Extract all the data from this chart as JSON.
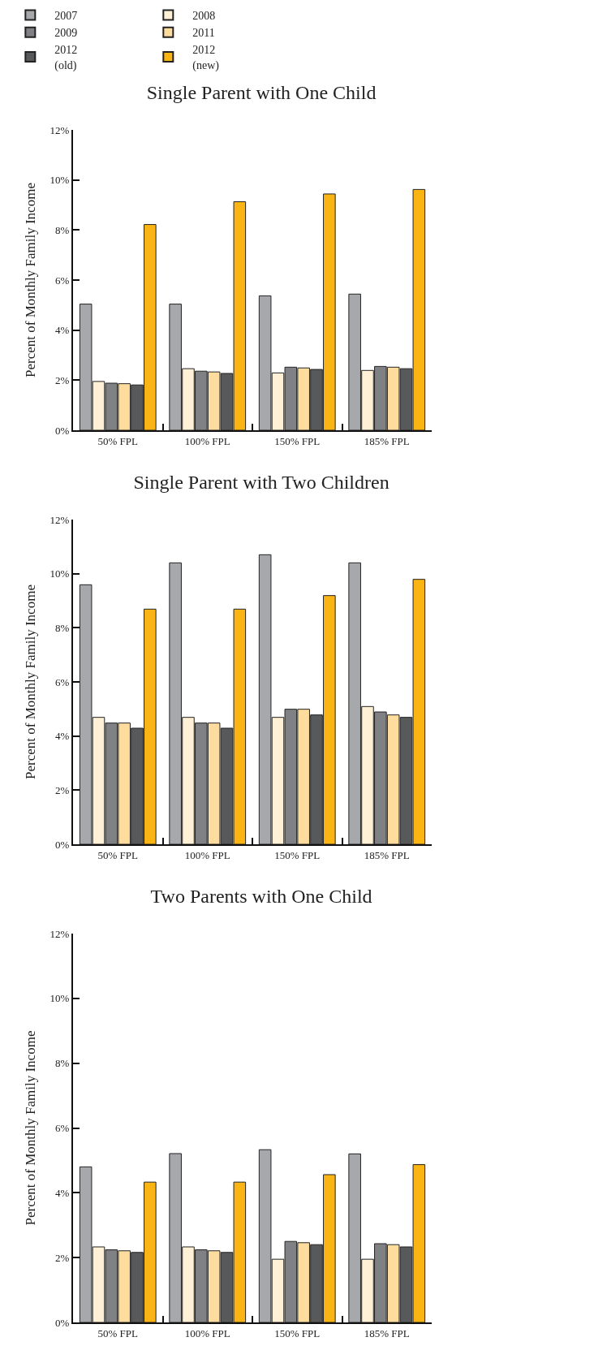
{
  "chart_data": [
    {
      "type": "bar",
      "title": "Single Parent with One Child",
      "ylabel": "Percent of Monthly Family Income",
      "categories": [
        "50% FPL",
        "100% FPL",
        "150% FPL",
        "185% FPL"
      ],
      "ylim": [
        0,
        12
      ],
      "yticks": [
        {
          "value": 0,
          "label": "0%"
        },
        {
          "value": 2,
          "label": "2%"
        },
        {
          "value": 4,
          "label": "4%"
        },
        {
          "value": 6,
          "label": "6%"
        },
        {
          "value": 8,
          "label": "8%"
        },
        {
          "value": 10,
          "label": "10%"
        },
        {
          "value": 12,
          "label": "12%"
        }
      ],
      "grid": false,
      "legend": "top",
      "series": [
        {
          "name": "2007",
          "color": "#a7a8ab",
          "values": [
            5.04,
            5.04,
            5.37,
            5.44
          ]
        },
        {
          "name": "2008",
          "color": "#fff0d6",
          "values": [
            1.95,
            2.46,
            2.29,
            2.39
          ]
        },
        {
          "name": "2009",
          "color": "#808184",
          "values": [
            1.88,
            2.36,
            2.52,
            2.55
          ]
        },
        {
          "name": "2011",
          "color": "#fedc9e",
          "values": [
            1.86,
            2.33,
            2.49,
            2.52
          ]
        },
        {
          "name": "2012 (old)",
          "color": "#58595b",
          "values": [
            1.81,
            2.27,
            2.43,
            2.46
          ]
        },
        {
          "name": "2012 (new)",
          "color": "#fab515",
          "values": [
            8.22,
            9.13,
            9.44,
            9.62
          ]
        }
      ]
    },
    {
      "type": "bar",
      "title": "Single Parent with Two Children",
      "ylabel": "Percent of Monthly Family Income",
      "categories": [
        "50% FPL",
        "100% FPL",
        "150% FPL",
        "185% FPL"
      ],
      "ylim": [
        0,
        12
      ],
      "yticks": [
        {
          "value": 0,
          "label": "0%"
        },
        {
          "value": 2,
          "label": "2%"
        },
        {
          "value": 4,
          "label": "4%"
        },
        {
          "value": 6,
          "label": "6%"
        },
        {
          "value": 8,
          "label": "8%"
        },
        {
          "value": 10,
          "label": "10%"
        },
        {
          "value": 12,
          "label": "12%"
        }
      ],
      "grid": false,
      "series": [
        {
          "color": "#a7a8ab",
          "values": [
            9.59,
            10.4,
            10.7,
            10.4
          ]
        },
        {
          "color": "#fff0d6",
          "values": [
            4.69,
            4.69,
            4.69,
            5.09
          ]
        },
        {
          "color": "#808184",
          "values": [
            4.48,
            4.48,
            4.99,
            4.89
          ]
        },
        {
          "color": "#fedc9e",
          "values": [
            4.48,
            4.48,
            4.99,
            4.78
          ]
        },
        {
          "color": "#58595b",
          "values": [
            4.29,
            4.29,
            4.78,
            4.69
          ]
        },
        {
          "color": "#fab515",
          "values": [
            8.69,
            8.69,
            9.19,
            9.79
          ]
        }
      ]
    },
    {
      "type": "bar",
      "title": "Two Parents with One Child",
      "ylabel": "Percent of Monthly Family Income",
      "categories": [
        "50% FPL",
        "100% FPL",
        "150% FPL",
        "185% FPL"
      ],
      "ylim": [
        0,
        12
      ],
      "yticks": [
        {
          "value": 0,
          "label": "0%"
        },
        {
          "value": 2,
          "label": "2%"
        },
        {
          "value": 4,
          "label": "4%"
        },
        {
          "value": 6,
          "label": "6%"
        },
        {
          "value": 8,
          "label": "8%"
        },
        {
          "value": 10,
          "label": "10%"
        },
        {
          "value": 12,
          "label": "12%"
        }
      ],
      "grid": false,
      "series": [
        {
          "color": "#a7a8ab",
          "values": [
            4.8,
            5.21,
            5.33,
            5.2
          ]
        },
        {
          "color": "#fff0d6",
          "values": [
            2.33,
            2.33,
            1.95,
            1.95
          ]
        },
        {
          "color": "#808184",
          "values": [
            2.24,
            2.24,
            2.5,
            2.43
          ]
        },
        {
          "color": "#fedc9e",
          "values": [
            2.21,
            2.21,
            2.46,
            2.4
          ]
        },
        {
          "color": "#58595b",
          "values": [
            2.16,
            2.16,
            2.4,
            2.33
          ]
        },
        {
          "color": "#fab515",
          "values": [
            4.33,
            4.33,
            4.56,
            4.87
          ]
        }
      ]
    }
  ]
}
